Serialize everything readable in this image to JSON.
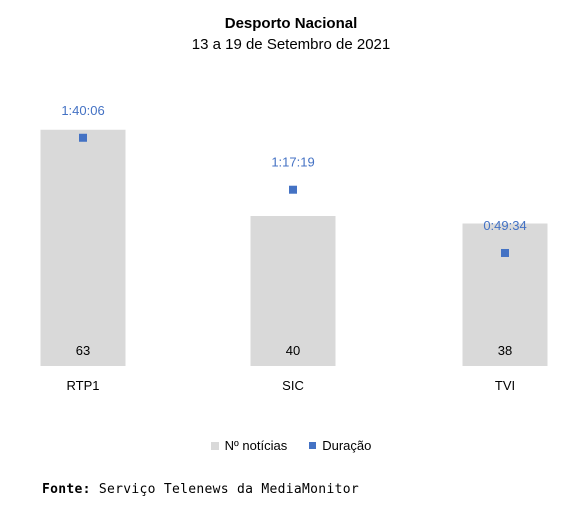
{
  "chart_data": {
    "type": "bar",
    "title": "Desporto Nacional",
    "subtitle": "13 a 19 de Setembro de 2021",
    "categories": [
      "RTP1",
      "SIC",
      "TVI"
    ],
    "series": [
      {
        "name": "Nº notícias",
        "values": [
          63,
          40,
          38
        ],
        "color": "#d9d9d9"
      },
      {
        "name": "Duração",
        "values": [
          "1:40:06",
          "1:17:19",
          "0:49:34"
        ],
        "seconds": [
          6006,
          4639,
          2974
        ],
        "color": "#4472c4"
      }
    ],
    "bar_value_labels": [
      "63",
      "40",
      "38"
    ],
    "marker_value_labels": [
      "1:40:06",
      "1:17:19",
      "0:49:34"
    ],
    "legend_position": "bottom"
  },
  "footer": {
    "label": "Fonte:",
    "text": " Serviço Telenews da MediaMonitor"
  }
}
